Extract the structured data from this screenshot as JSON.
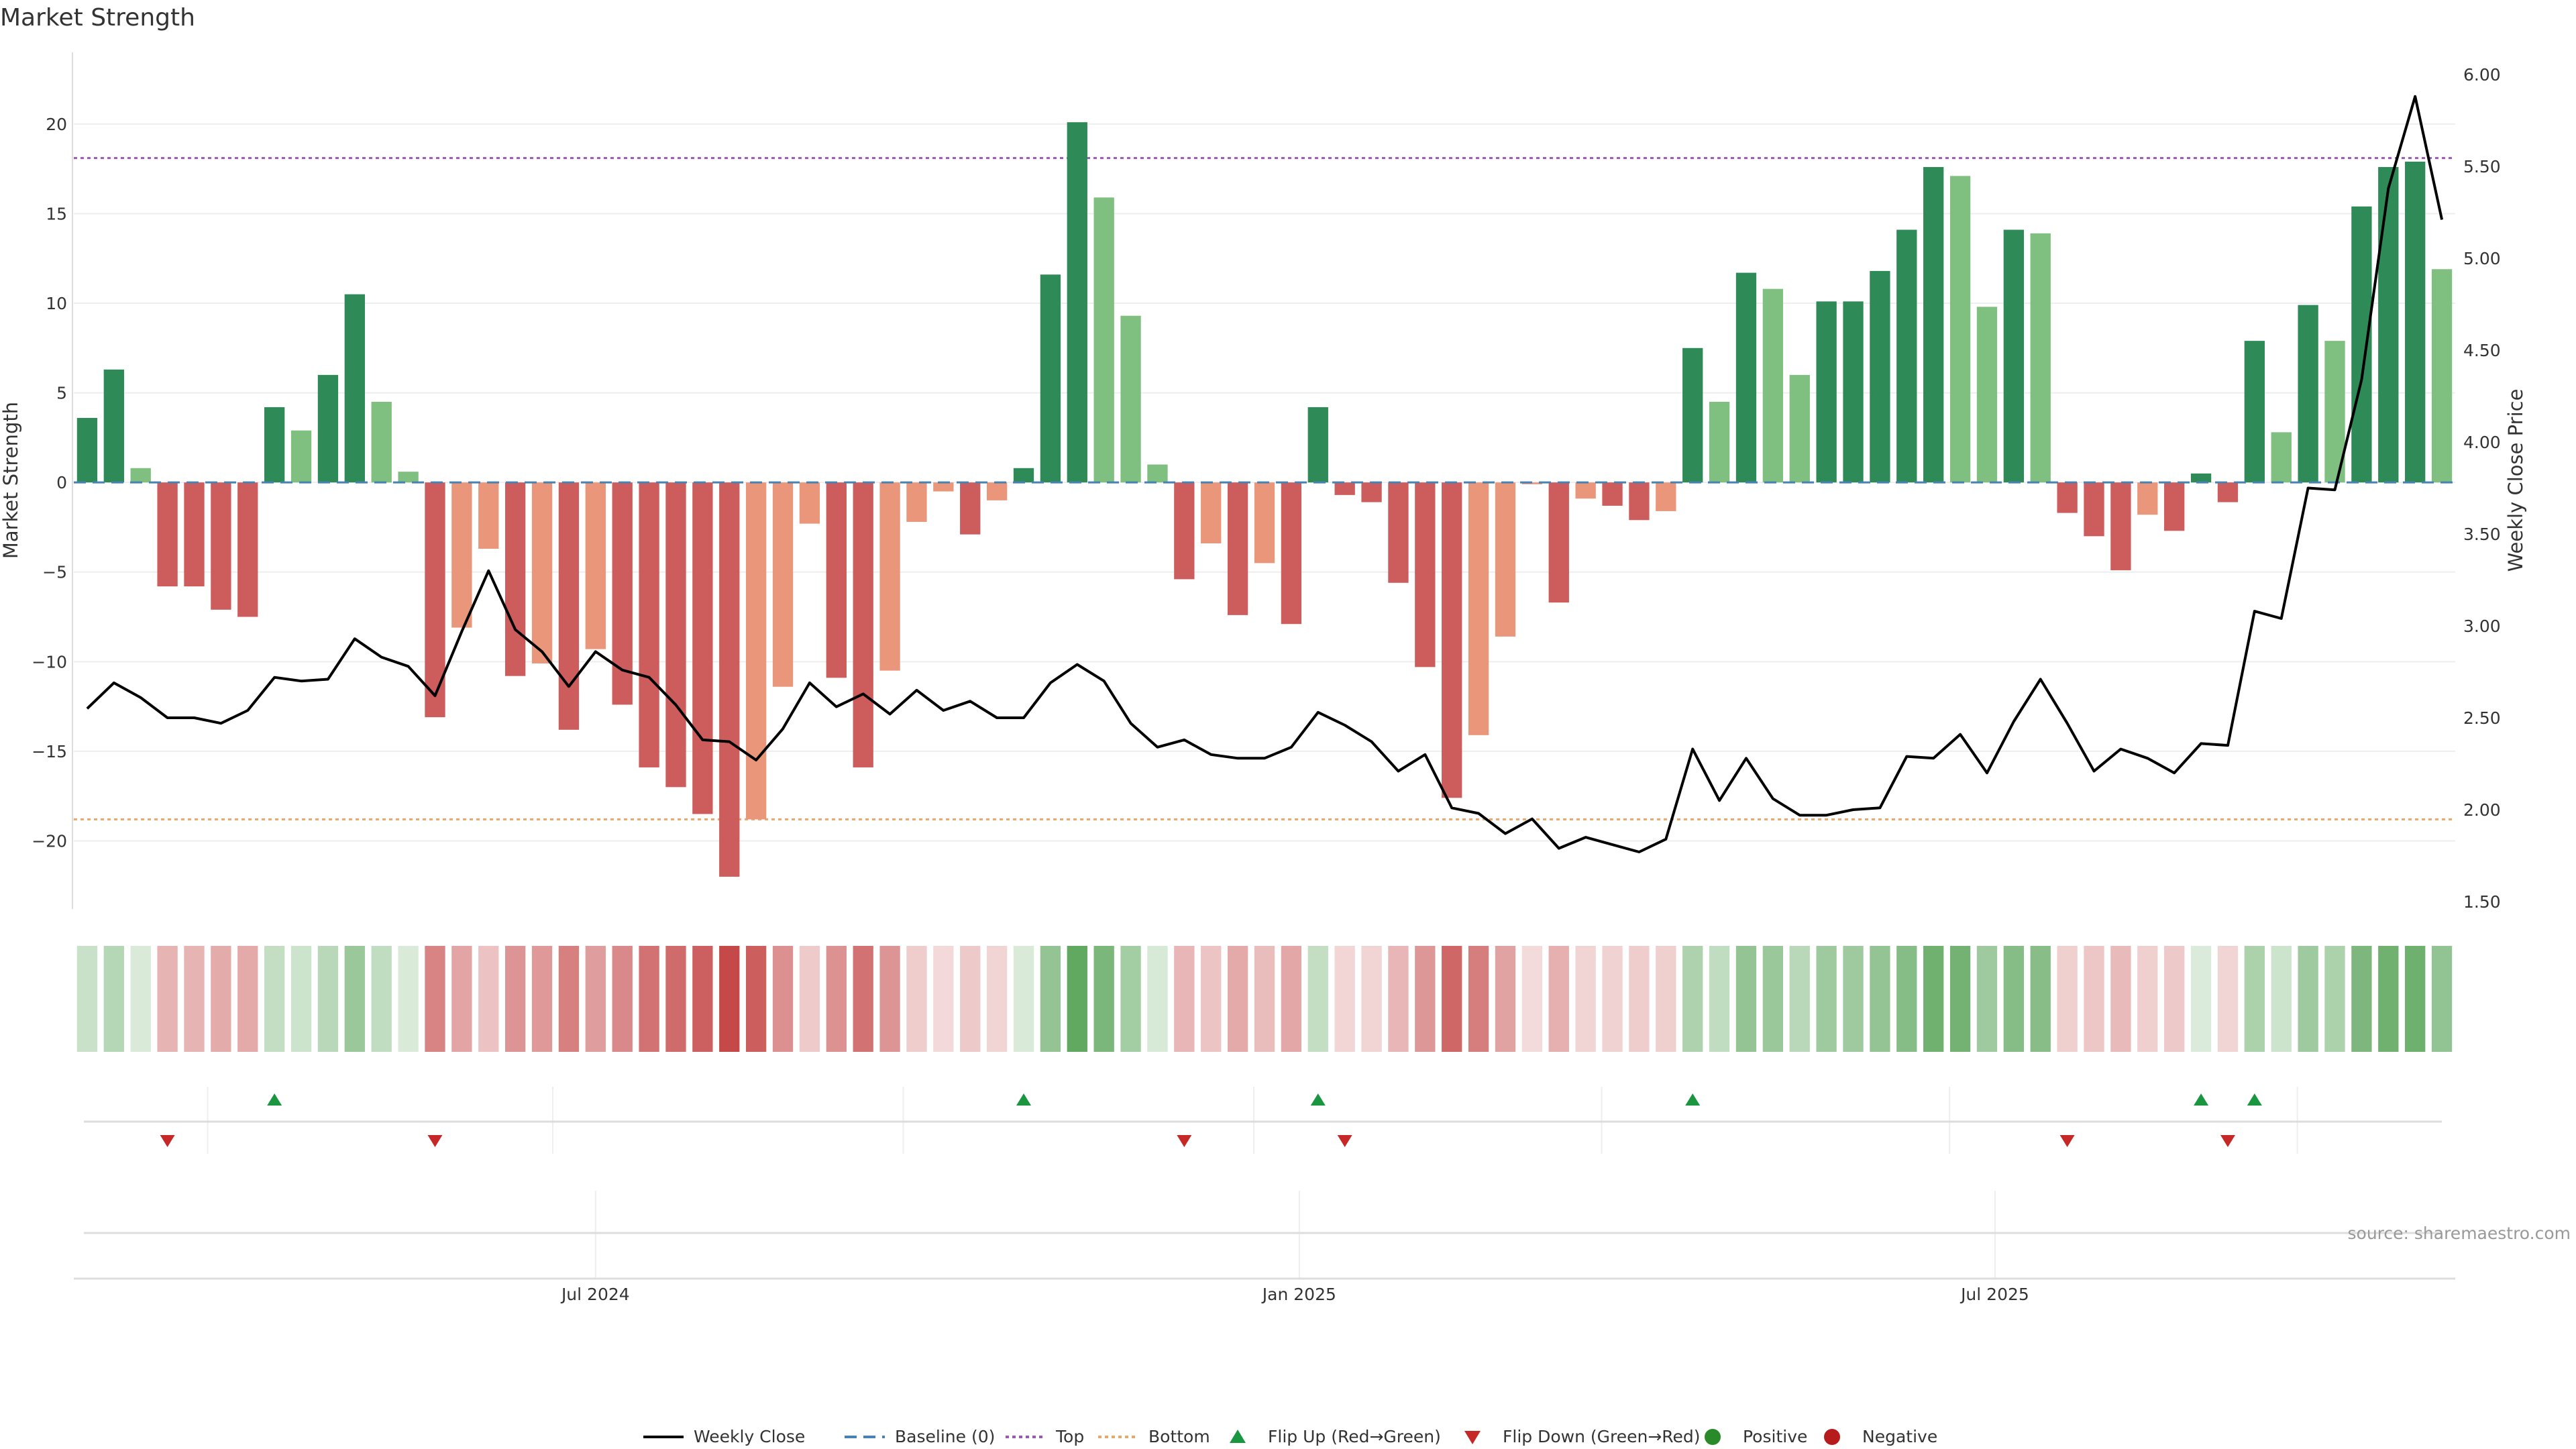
{
  "chart_data": {
    "type": "bar",
    "title": "Market Strength",
    "ylabel": "Market Strength",
    "y2label": "Weekly Close Price",
    "ylim": [
      -23.8,
      24
    ],
    "y2lim": [
      1.46,
      6.12
    ],
    "yticks": [
      -20,
      -15,
      -10,
      -5,
      0,
      5,
      10,
      15,
      20
    ],
    "y2ticks": [
      "1.50",
      "2.00",
      "2.50",
      "3.00",
      "3.50",
      "4.00",
      "4.50",
      "5.00",
      "5.50",
      "6.00"
    ],
    "top_level": 18.1,
    "bottom_level": -18.8,
    "x_ticks": [
      {
        "label": "Jul 2024",
        "index": 19
      },
      {
        "label": "Jan 2025",
        "index": 45.3
      },
      {
        "label": "Jul 2025",
        "index": 71.3
      }
    ],
    "series": [
      {
        "name": "Market Strength",
        "values": [
          3.6,
          6.3,
          0.8,
          -5.8,
          -5.8,
          -7.1,
          -7.5,
          4.2,
          2.9,
          6.0,
          10.5,
          4.5,
          0.6,
          -13.1,
          -8.1,
          -3.7,
          -10.8,
          -10.1,
          -13.8,
          -9.3,
          -12.4,
          -15.9,
          -17.0,
          -18.5,
          -22.0,
          -18.8,
          -11.4,
          -2.3,
          -10.9,
          -15.9,
          -10.5,
          -2.2,
          -0.5,
          -2.9,
          -1.0,
          0.8,
          11.6,
          20.1,
          15.9,
          9.3,
          1.0,
          -5.4,
          -3.4,
          -7.4,
          -4.5,
          -7.9,
          4.2,
          -0.7,
          -1.1,
          -5.6,
          -10.3,
          -17.6,
          -14.1,
          -8.6,
          -0.1,
          -6.7,
          -0.9,
          -1.3,
          -2.1,
          -1.6,
          7.5,
          4.5,
          11.7,
          10.8,
          6.0,
          10.1,
          10.1,
          11.8,
          14.1,
          17.6,
          17.1,
          9.8,
          14.1,
          13.9,
          -1.7,
          -3.0,
          -4.9,
          -1.8,
          -2.7,
          0.5,
          -1.1,
          7.9,
          2.8,
          9.9,
          7.9,
          15.4,
          17.6,
          17.9,
          11.9
        ]
      },
      {
        "name": "Weekly Close",
        "values": [
          2.55,
          2.69,
          2.61,
          2.5,
          2.5,
          2.47,
          2.54,
          2.72,
          2.7,
          2.71,
          2.93,
          2.83,
          2.78,
          2.62,
          2.97,
          3.3,
          2.98,
          2.86,
          2.67,
          2.86,
          2.76,
          2.72,
          2.57,
          2.38,
          2.37,
          2.27,
          2.44,
          2.69,
          2.56,
          2.63,
          2.52,
          2.65,
          2.54,
          2.59,
          2.5,
          2.5,
          2.69,
          2.79,
          2.7,
          2.47,
          2.34,
          2.38,
          2.3,
          2.28,
          2.28,
          2.34,
          2.53,
          2.46,
          2.37,
          2.21,
          2.3,
          2.01,
          1.98,
          1.87,
          1.95,
          1.79,
          1.85,
          1.81,
          1.77,
          1.84,
          2.33,
          2.05,
          2.28,
          2.06,
          1.97,
          1.97,
          2.0,
          2.01,
          2.29,
          2.28,
          2.41,
          2.2,
          2.48,
          2.71,
          2.47,
          2.21,
          2.33,
          2.28,
          2.2,
          2.36,
          2.35,
          3.08,
          3.04,
          3.75,
          3.74,
          4.34,
          5.38,
          5.88,
          5.21
        ]
      }
    ],
    "flip_up": [
      7,
      35,
      46,
      60,
      79,
      81
    ],
    "flip_down": [
      3,
      13,
      41,
      47,
      74,
      80
    ],
    "colors": {
      "strong_pos": "#2e8b57",
      "weak_pos": "#7fbf7f",
      "strong_neg": "#cd5c5c",
      "weak_neg": "#e9967a",
      "close_line": "#000000",
      "baseline": "#4682b4",
      "top": "#9b59b6",
      "bottom": "#e9a86b",
      "flip_up": "#1a9641",
      "flip_down": "#c62828",
      "positive": "#2a8a2a",
      "negative": "#b71c1c"
    },
    "legend": [
      {
        "label": "Weekly Close",
        "kind": "line"
      },
      {
        "label": "Baseline (0)",
        "kind": "dashed"
      },
      {
        "label": "Top",
        "kind": "dotted-top"
      },
      {
        "label": "Bottom",
        "kind": "dotted-bottom"
      },
      {
        "label": "Flip Up (Red→Green)",
        "kind": "tri-up"
      },
      {
        "label": "Flip Down (Green→Red)",
        "kind": "tri-down"
      },
      {
        "label": "Positive",
        "kind": "dot-pos"
      },
      {
        "label": "Negative",
        "kind": "dot-neg"
      }
    ],
    "source": "source: sharemaestro.com"
  }
}
